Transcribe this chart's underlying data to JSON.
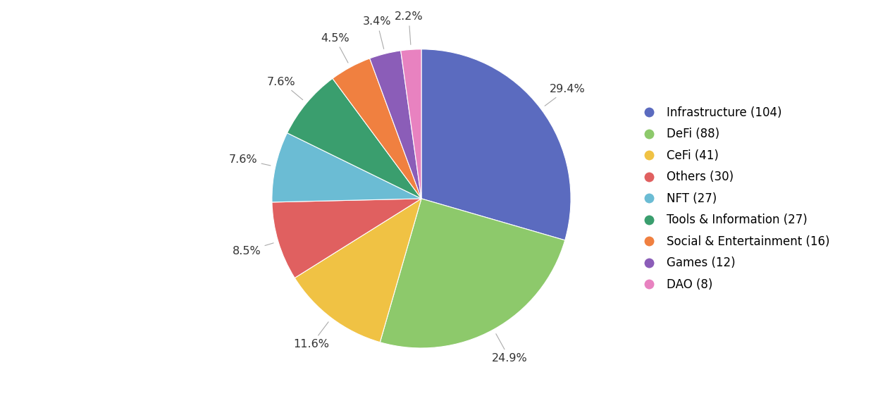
{
  "labels": [
    "Infrastructure (104)",
    "DeFi (88)",
    "CeFi (41)",
    "Others (30)",
    "NFT (27)",
    "Tools & Information (27)",
    "Social & Entertainment (16)",
    "Games (12)",
    "DAO (8)"
  ],
  "values": [
    29.4,
    24.9,
    11.6,
    8.5,
    7.6,
    7.6,
    4.5,
    3.4,
    2.2
  ],
  "pct_labels": [
    "29.4%",
    "24.9%",
    "11.6%",
    "8.5%",
    "7.6%",
    "7.6%",
    "4.5%",
    "3.4%",
    "2.2%"
  ],
  "colors": [
    "#5B6BBF",
    "#8DC96B",
    "#F0C244",
    "#E06060",
    "#6BBCD4",
    "#3A9E6E",
    "#F08040",
    "#8B5DB8",
    "#E882C0"
  ],
  "background_color": "#ffffff",
  "legend_fontsize": 12,
  "pct_fontsize": 11.5,
  "startangle": 90,
  "figsize": [
    12.46,
    5.62
  ],
  "dpi": 100
}
